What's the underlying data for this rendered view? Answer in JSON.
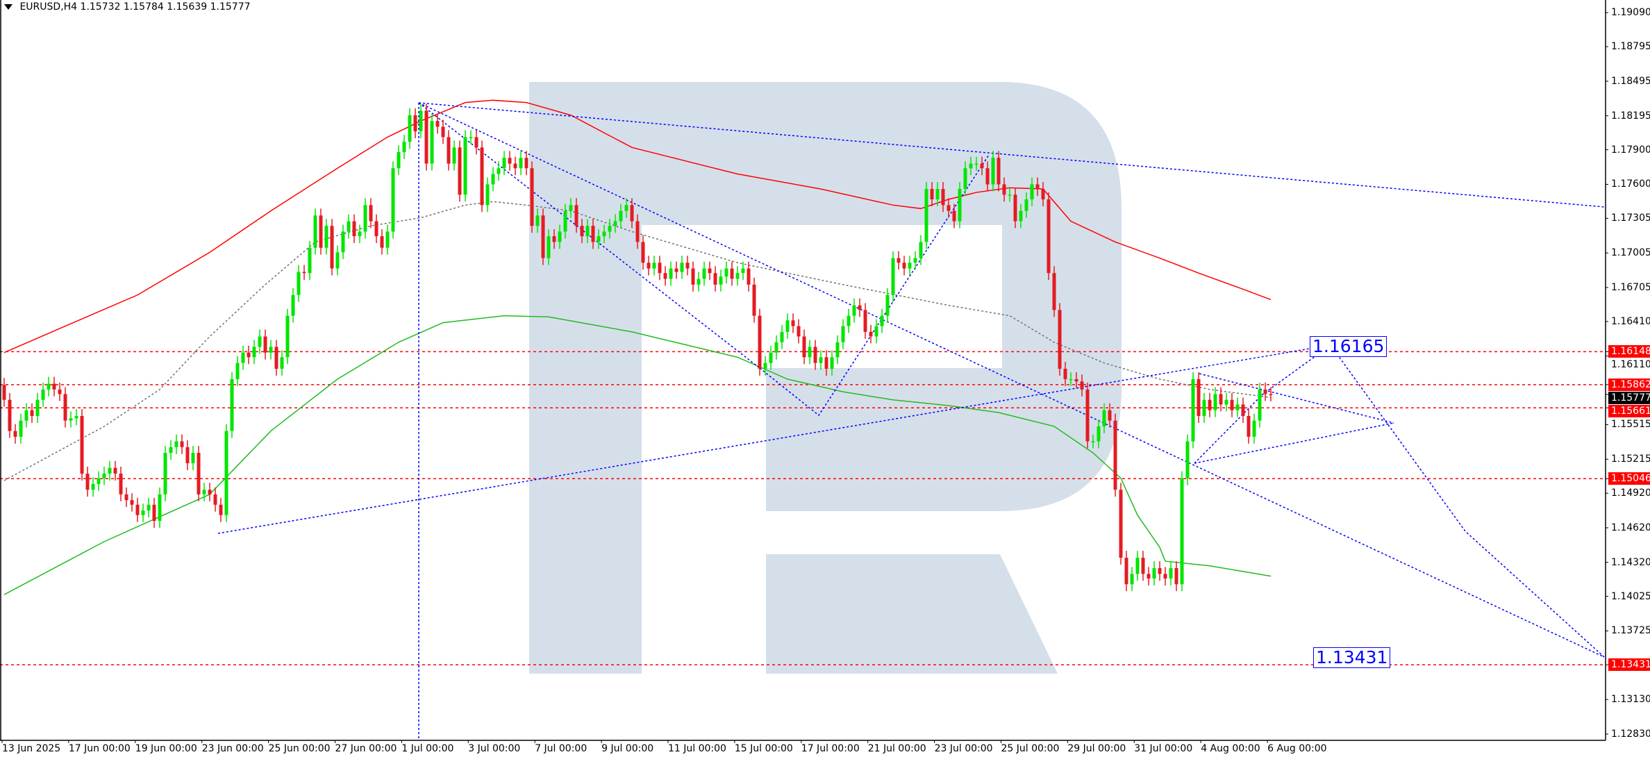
{
  "header": {
    "symbol": "EURUSD,H4",
    "open": "1.15732",
    "high": "1.15784",
    "low": "1.15639",
    "close": "1.15777"
  },
  "colors": {
    "bull": "#00e600",
    "bear": "#e41b23",
    "ma_red": "#ff0000",
    "ma_green": "#22bb22",
    "ma_gray": "#707070",
    "drawing_blue": "#0000ff",
    "level_red": "#ff0000",
    "watermark": "#d5dfea"
  },
  "watermark": "R",
  "chart_data": {
    "type": "candlestick",
    "timeframe": "H4",
    "ylim": [
      1.1265,
      1.192
    ],
    "grid": false,
    "first_open": 1.1586,
    "closes": [
      1.1573,
      1.1546,
      1.1541,
      1.1555,
      1.1564,
      1.1559,
      1.1573,
      1.1582,
      1.1587,
      1.1582,
      1.1578,
      1.1555,
      1.1557,
      1.1559,
      1.1509,
      1.1495,
      1.15,
      1.1505,
      1.1509,
      1.1514,
      1.1509,
      1.1491,
      1.1486,
      1.1482,
      1.1473,
      1.1477,
      1.1482,
      1.1468,
      1.1491,
      1.1527,
      1.1532,
      1.1537,
      1.1532,
      1.1518,
      1.1527,
      1.1491,
      1.1495,
      1.1491,
      1.1482,
      1.1473,
      1.1546,
      1.1591,
      1.1605,
      1.1614,
      1.161,
      1.1619,
      1.1628,
      1.1614,
      1.1619,
      1.16,
      1.161,
      1.1646,
      1.1664,
      1.1684,
      1.1683,
      1.1705,
      1.1733,
      1.1705,
      1.1724,
      1.1687,
      1.1701,
      1.1719,
      1.1728,
      1.1715,
      1.1719,
      1.1742,
      1.1728,
      1.1715,
      1.1705,
      1.1719,
      1.1774,
      1.1788,
      1.1797,
      1.182,
      1.1806,
      1.1824,
      1.1778,
      1.1815,
      1.181,
      1.1801,
      1.1778,
      1.1792,
      1.1751,
      1.1801,
      1.1801,
      1.1792,
      1.1742,
      1.176,
      1.1769,
      1.1774,
      1.1783,
      1.1778,
      1.1774,
      1.1783,
      1.1774,
      1.1724,
      1.1733,
      1.1696,
      1.1715,
      1.171,
      1.1719,
      1.1737,
      1.1742,
      1.1724,
      1.1715,
      1.1724,
      1.171,
      1.1715,
      1.1719,
      1.1724,
      1.1728,
      1.1737,
      1.1742,
      1.1728,
      1.171,
      1.1692,
      1.1687,
      1.1692,
      1.1683,
      1.1678,
      1.1687,
      1.1684,
      1.1692,
      1.1687,
      1.1673,
      1.1678,
      1.1687,
      1.1683,
      1.1673,
      1.168,
      1.1687,
      1.1678,
      1.1683,
      1.1687,
      1.1673,
      1.1646,
      1.16,
      1.1605,
      1.1614,
      1.1623,
      1.1632,
      1.1642,
      1.1637,
      1.1628,
      1.161,
      1.1619,
      1.1605,
      1.161,
      1.16,
      1.161,
      1.1623,
      1.1637,
      1.1646,
      1.1655,
      1.1651,
      1.1632,
      1.1628,
      1.1637,
      1.1646,
      1.1664,
      1.1696,
      1.1692,
      1.1687,
      1.1692,
      1.1696,
      1.171,
      1.1756,
      1.1747,
      1.1756,
      1.1742,
      1.1737,
      1.1728,
      1.1756,
      1.1774,
      1.1778,
      1.1778,
      1.1774,
      1.176,
      1.1783,
      1.176,
      1.1751,
      1.1751,
      1.1728,
      1.1737,
      1.1747,
      1.176,
      1.1756,
      1.1747,
      1.1683,
      1.1651,
      1.16,
      1.1591,
      1.1591,
      1.1589,
      1.1582,
      1.1537,
      1.1537,
      1.155,
      1.1564,
      1.1555,
      1.1495,
      1.1436,
      1.1413,
      1.1422,
      1.1436,
      1.1422,
      1.1418,
      1.1427,
      1.1422,
      1.1418,
      1.1427,
      1.1413,
      1.1505,
      1.1537,
      1.1591,
      1.1559,
      1.1573,
      1.1564,
      1.1578,
      1.1569,
      1.1573,
      1.1564,
      1.1569,
      1.1559,
      1.1541,
      1.1555,
      1.1582,
      1.1578,
      1.15777
    ],
    "moving_averages": [
      {
        "color": "#ff0000",
        "style": "solid",
        "points": [
          [
            0,
            1.1614
          ],
          [
            11,
            1.1637
          ],
          [
            24,
            1.1664
          ],
          [
            37,
            1.1701
          ],
          [
            48,
            1.1737
          ],
          [
            60,
            1.1774
          ],
          [
            69,
            1.1801
          ],
          [
            75,
            1.1815
          ],
          [
            83,
            1.1831
          ],
          [
            88,
            1.1833
          ],
          [
            94,
            1.1831
          ],
          [
            102,
            1.182
          ],
          [
            113,
            1.1792
          ],
          [
            132,
            1.1769
          ],
          [
            147,
            1.1756
          ],
          [
            160,
            1.1742
          ],
          [
            165,
            1.1739
          ],
          [
            170,
            1.1747
          ],
          [
            175,
            1.1753
          ],
          [
            181,
            1.1757
          ],
          [
            187,
            1.1756
          ],
          [
            192,
            1.1728
          ],
          [
            200,
            1.171
          ],
          [
            208,
            1.1696
          ],
          [
            215,
            1.1683
          ],
          [
            223,
            1.1669
          ],
          [
            228,
            1.166
          ]
        ]
      },
      {
        "color": "#707070",
        "style": "dotted",
        "points": [
          [
            0,
            1.1503
          ],
          [
            18,
            1.155
          ],
          [
            28,
            1.1582
          ],
          [
            37,
            1.1628
          ],
          [
            47,
            1.1673
          ],
          [
            56,
            1.171
          ],
          [
            66,
            1.1724
          ],
          [
            75,
            1.1731
          ],
          [
            83,
            1.1742
          ],
          [
            88,
            1.1745
          ],
          [
            94,
            1.1742
          ],
          [
            102,
            1.1737
          ],
          [
            113,
            1.1719
          ],
          [
            132,
            1.1692
          ],
          [
            151,
            1.1673
          ],
          [
            170,
            1.1655
          ],
          [
            181,
            1.1646
          ],
          [
            189,
            1.1623
          ],
          [
            198,
            1.1605
          ],
          [
            208,
            1.1591
          ],
          [
            217,
            1.1582
          ],
          [
            228,
            1.1575
          ]
        ]
      },
      {
        "color": "#22bb22",
        "style": "solid",
        "points": [
          [
            0,
            1.1404
          ],
          [
            18,
            1.145
          ],
          [
            37,
            1.1491
          ],
          [
            48,
            1.1546
          ],
          [
            60,
            1.1591
          ],
          [
            71,
            1.1623
          ],
          [
            79,
            1.164
          ],
          [
            90,
            1.1646
          ],
          [
            98,
            1.1645
          ],
          [
            113,
            1.1632
          ],
          [
            132,
            1.161
          ],
          [
            141,
            1.1591
          ],
          [
            151,
            1.158
          ],
          [
            160,
            1.1573
          ],
          [
            170,
            1.1568
          ],
          [
            179,
            1.1562
          ],
          [
            189,
            1.155
          ],
          [
            196,
            1.1527
          ],
          [
            201,
            1.1505
          ],
          [
            204,
            1.1473
          ],
          [
            208,
            1.1445
          ],
          [
            209,
            1.1433
          ],
          [
            217,
            1.1429
          ],
          [
            228,
            1.142
          ]
        ]
      }
    ],
    "price_ticks": [
      "1.19090",
      "1.18795",
      "1.18495",
      "1.18195",
      "1.17900",
      "1.17600",
      "1.17305",
      "1.17005",
      "1.16705",
      "1.16410",
      "1.16110",
      "1.15515",
      "1.15215",
      "1.14920",
      "1.14620",
      "1.14320",
      "1.14025",
      "1.13725",
      "1.13130",
      "1.12830"
    ],
    "levels": [
      {
        "price": "1.16148",
        "kind": "red"
      },
      {
        "price": "1.15862",
        "kind": "red"
      },
      {
        "price": "1.15661",
        "kind": "red"
      },
      {
        "price": "1.15046",
        "kind": "red"
      },
      {
        "price": "1.13431",
        "kind": "red"
      }
    ],
    "current_price": "1.15777",
    "time_ticks": [
      "13 Jun 2025",
      "17 Jun 00:00",
      "19 Jun 00:00",
      "23 Jun 00:00",
      "25 Jun 00:00",
      "27 Jun 00:00",
      "1 Jul 00:00",
      "3 Jul 00:00",
      "7 Jul 00:00",
      "9 Jul 00:00",
      "11 Jul 00:00",
      "15 Jul 00:00",
      "17 Jul 00:00",
      "21 Jul 00:00",
      "23 Jul 00:00",
      "25 Jul 00:00",
      "29 Jul 00:00",
      "31 Jul 00:00",
      "4 Aug 00:00",
      "6 Aug 00:00"
    ],
    "targets": {
      "upper": "1.16165",
      "lower": "1.13431"
    }
  }
}
